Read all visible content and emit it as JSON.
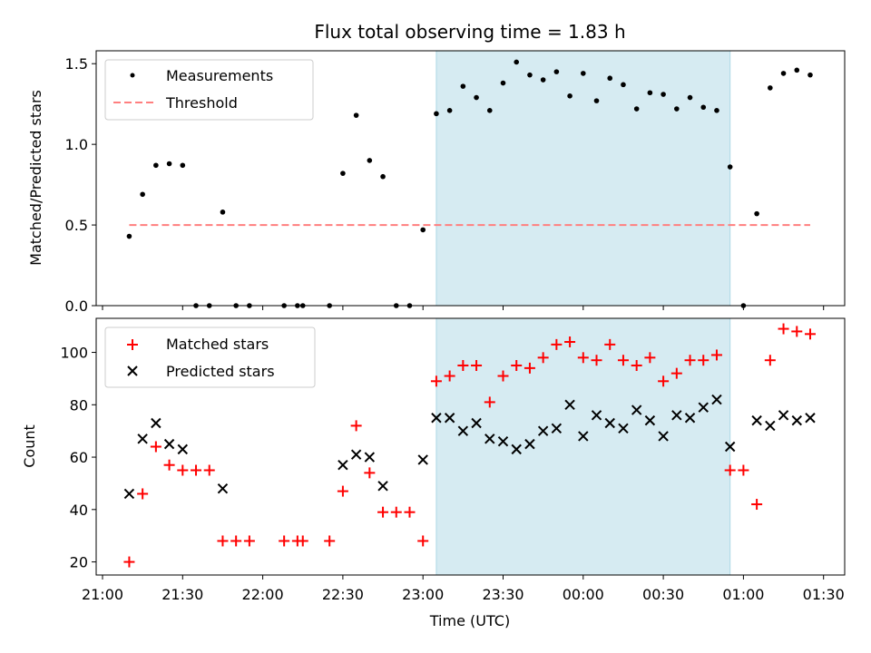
{
  "chart_data": [
    {
      "type": "scatter",
      "title": "Flux total observing time = 1.83 h",
      "xlabel": "",
      "ylabel": "Matched/Predicted stars",
      "ylim": [
        0,
        1.58
      ],
      "yticks": [
        "0.0",
        "0.5",
        "1.0",
        "1.5"
      ],
      "xlim": [
        "21:00",
        "01:30"
      ],
      "shaded_interval": [
        "23:05",
        "00:55"
      ],
      "shade_color": "#add8e6",
      "legend_position": "top-left",
      "series": [
        {
          "name": "Measurements",
          "marker": "dot",
          "color": "#000000",
          "x": [
            "21:10",
            "21:15",
            "21:20",
            "21:25",
            "21:30",
            "21:35",
            "21:40",
            "21:45",
            "21:50",
            "21:55",
            "22:08",
            "22:13",
            "22:15",
            "22:25",
            "22:30",
            "22:35",
            "22:40",
            "22:45",
            "22:50",
            "22:55",
            "23:00",
            "23:05",
            "23:10",
            "23:15",
            "23:20",
            "23:25",
            "23:30",
            "23:35",
            "23:40",
            "23:45",
            "23:50",
            "23:55",
            "00:00",
            "00:05",
            "00:10",
            "00:15",
            "00:20",
            "00:25",
            "00:30",
            "00:35",
            "00:40",
            "00:45",
            "00:50",
            "00:55",
            "01:00",
            "01:05",
            "01:10",
            "01:15",
            "01:20",
            "01:25"
          ],
          "y": [
            0.43,
            0.69,
            0.87,
            0.88,
            0.87,
            0.0,
            0.0,
            0.58,
            0.0,
            0.0,
            0.0,
            0.0,
            0.0,
            0.0,
            0.82,
            1.18,
            0.9,
            0.8,
            0.0,
            0.0,
            0.47,
            1.19,
            1.21,
            1.36,
            1.29,
            1.21,
            1.38,
            1.51,
            1.43,
            1.4,
            1.45,
            1.3,
            1.44,
            1.27,
            1.41,
            1.37,
            1.22,
            1.32,
            1.31,
            1.22,
            1.29,
            1.23,
            1.21,
            0.86,
            0.0,
            0.57,
            1.35,
            1.44,
            1.46,
            1.43
          ]
        },
        {
          "name": "Threshold",
          "marker": "dashed-line",
          "color": "#ff7f7f",
          "x": [
            "21:10",
            "01:25"
          ],
          "y": [
            0.5,
            0.5
          ]
        }
      ]
    },
    {
      "type": "scatter",
      "title": "",
      "xlabel": "Time (UTC)",
      "ylabel": "Count",
      "ylim": [
        15,
        113
      ],
      "yticks": [
        "20",
        "40",
        "60",
        "80",
        "100"
      ],
      "xticks": [
        "21:00",
        "21:30",
        "22:00",
        "22:30",
        "23:00",
        "23:30",
        "00:00",
        "00:30",
        "01:00",
        "01:30"
      ],
      "xlim": [
        "21:00",
        "01:30"
      ],
      "shaded_interval": [
        "23:05",
        "00:55"
      ],
      "shade_color": "#add8e6",
      "legend_position": "top-left",
      "series": [
        {
          "name": "Matched stars",
          "marker": "plus",
          "color": "#ff0000",
          "x": [
            "21:10",
            "21:15",
            "21:20",
            "21:25",
            "21:30",
            "21:35",
            "21:40",
            "21:45",
            "21:50",
            "21:55",
            "22:08",
            "22:13",
            "22:15",
            "22:25",
            "22:30",
            "22:35",
            "22:40",
            "22:45",
            "22:50",
            "22:55",
            "23:00",
            "23:05",
            "23:10",
            "23:15",
            "23:20",
            "23:25",
            "23:30",
            "23:35",
            "23:40",
            "23:45",
            "23:50",
            "23:55",
            "00:00",
            "00:05",
            "00:10",
            "00:15",
            "00:20",
            "00:25",
            "00:30",
            "00:35",
            "00:40",
            "00:45",
            "00:50",
            "00:55",
            "01:00",
            "01:05",
            "01:10",
            "01:15",
            "01:20",
            "01:25"
          ],
          "y": [
            20,
            46,
            64,
            57,
            55,
            55,
            55,
            28,
            28,
            28,
            28,
            28,
            28,
            28,
            47,
            72,
            54,
            39,
            39,
            39,
            28,
            89,
            91,
            95,
            95,
            81,
            91,
            95,
            94,
            98,
            103,
            104,
            98,
            97,
            103,
            97,
            95,
            98,
            89,
            92,
            97,
            97,
            99,
            55,
            55,
            42,
            97,
            109,
            108,
            107
          ]
        },
        {
          "name": "Predicted stars",
          "marker": "x",
          "color": "#000000",
          "x": [
            "21:10",
            "21:15",
            "21:20",
            "21:25",
            "21:30",
            "21:45",
            "22:30",
            "22:35",
            "22:40",
            "22:45",
            "23:00",
            "23:05",
            "23:10",
            "23:15",
            "23:20",
            "23:25",
            "23:30",
            "23:35",
            "23:40",
            "23:45",
            "23:50",
            "23:55",
            "00:00",
            "00:05",
            "00:10",
            "00:15",
            "00:20",
            "00:25",
            "00:30",
            "00:35",
            "00:40",
            "00:45",
            "00:50",
            "00:55",
            "01:05",
            "01:10",
            "01:15",
            "01:20",
            "01:25"
          ],
          "y": [
            46,
            67,
            73,
            65,
            63,
            48,
            57,
            61,
            60,
            49,
            59,
            75,
            75,
            70,
            73,
            67,
            66,
            63,
            65,
            70,
            71,
            80,
            68,
            76,
            73,
            71,
            78,
            74,
            68,
            76,
            75,
            79,
            82,
            64,
            74,
            72,
            76,
            74,
            75
          ]
        }
      ]
    }
  ]
}
